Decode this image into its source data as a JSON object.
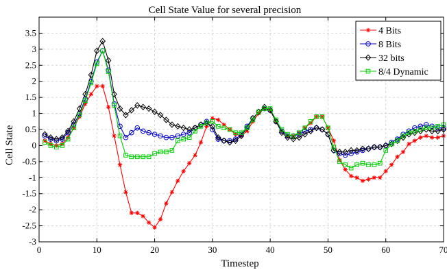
{
  "chart_data": {
    "type": "line",
    "title": "Cell State Value for several precision",
    "xlabel": "Timestep",
    "ylabel": "Cell State",
    "xlim": [
      0,
      70
    ],
    "ylim": [
      -3,
      4
    ],
    "xticks": [
      "0",
      "10",
      "20",
      "30",
      "40",
      "50",
      "60",
      "70"
    ],
    "yticks": [
      "-3",
      "-2.5",
      "-2",
      "-1.5",
      "-1",
      "-0.5",
      "0",
      "0.5",
      "1",
      "1.5",
      "2",
      "2.5",
      "3",
      "3.5"
    ],
    "grid": true,
    "legend_position": "top-right",
    "x": [
      1,
      2,
      3,
      4,
      5,
      6,
      7,
      8,
      9,
      10,
      11,
      12,
      13,
      14,
      15,
      16,
      17,
      18,
      19,
      20,
      21,
      22,
      23,
      24,
      25,
      26,
      27,
      28,
      29,
      30,
      31,
      32,
      33,
      34,
      35,
      36,
      37,
      38,
      39,
      40,
      41,
      42,
      43,
      44,
      45,
      46,
      47,
      48,
      49,
      50,
      51,
      52,
      53,
      54,
      55,
      56,
      57,
      58,
      59,
      60,
      61,
      62,
      63,
      64,
      65,
      66,
      67,
      68,
      69,
      70
    ],
    "series": [
      {
        "name": "4 Bits",
        "color": "#ff0000",
        "marker": "star",
        "values": [
          0.15,
          0.05,
          0.0,
          0.05,
          0.25,
          0.55,
          0.9,
          1.3,
          1.6,
          1.85,
          1.85,
          1.2,
          0.3,
          -0.6,
          -1.45,
          -2.1,
          -2.1,
          -2.2,
          -2.4,
          -2.55,
          -2.3,
          -1.8,
          -1.45,
          -1.1,
          -0.8,
          -0.55,
          -0.3,
          0.1,
          0.6,
          0.85,
          0.8,
          0.65,
          0.5,
          0.35,
          0.3,
          0.45,
          0.75,
          1.0,
          1.15,
          1.1,
          0.75,
          0.45,
          0.3,
          0.3,
          0.4,
          0.55,
          0.7,
          0.9,
          0.9,
          0.55,
          0.15,
          -0.45,
          -0.75,
          -0.95,
          -1.0,
          -1.1,
          -1.05,
          -1.0,
          -1.0,
          -0.8,
          -0.6,
          -0.35,
          -0.2,
          0.05,
          0.15,
          0.25,
          0.3,
          0.25,
          0.25,
          0.3
        ]
      },
      {
        "name": "8 Bits",
        "color": "#0000cc",
        "marker": "circle",
        "values": [
          0.3,
          0.2,
          0.15,
          0.2,
          0.4,
          0.65,
          1.0,
          1.45,
          2.0,
          2.6,
          2.95,
          2.35,
          1.3,
          0.6,
          0.25,
          0.4,
          0.55,
          0.45,
          0.4,
          0.35,
          0.3,
          0.25,
          0.25,
          0.3,
          0.35,
          0.4,
          0.55,
          0.65,
          0.75,
          0.5,
          0.2,
          0.15,
          0.15,
          0.2,
          0.35,
          0.6,
          0.85,
          1.05,
          1.15,
          1.1,
          0.75,
          0.45,
          0.3,
          0.3,
          0.35,
          0.45,
          0.5,
          0.55,
          0.5,
          0.35,
          -0.15,
          -0.25,
          -0.3,
          -0.25,
          -0.2,
          -0.15,
          -0.1,
          -0.05,
          -0.05,
          0.0,
          0.1,
          0.2,
          0.35,
          0.45,
          0.55,
          0.6,
          0.65,
          0.6,
          0.55,
          0.55
        ]
      },
      {
        "name": "32 bits",
        "color": "#000000",
        "marker": "diamond",
        "values": [
          0.35,
          0.25,
          0.2,
          0.25,
          0.45,
          0.75,
          1.15,
          1.6,
          2.2,
          2.95,
          3.25,
          2.65,
          1.6,
          1.15,
          0.95,
          1.1,
          1.25,
          1.2,
          1.15,
          1.05,
          0.95,
          0.8,
          0.65,
          0.6,
          0.55,
          0.5,
          0.55,
          0.65,
          0.7,
          0.6,
          0.25,
          0.15,
          0.1,
          0.15,
          0.3,
          0.55,
          0.85,
          1.05,
          1.2,
          1.1,
          0.75,
          0.4,
          0.25,
          0.2,
          0.25,
          0.35,
          0.45,
          0.55,
          0.5,
          0.35,
          -0.15,
          -0.2,
          -0.2,
          -0.15,
          -0.15,
          -0.1,
          -0.1,
          -0.05,
          -0.05,
          0.0,
          0.05,
          0.15,
          0.25,
          0.35,
          0.4,
          0.45,
          0.5,
          0.45,
          0.45,
          0.5
        ]
      },
      {
        "name": "8/4 Dynamic",
        "color": "#00cc00",
        "marker": "square",
        "values": [
          0.1,
          0.0,
          -0.05,
          0.0,
          0.2,
          0.55,
          0.95,
          1.4,
          1.95,
          2.55,
          2.95,
          2.3,
          1.25,
          0.3,
          -0.3,
          -0.35,
          -0.35,
          -0.35,
          -0.35,
          -0.25,
          -0.2,
          -0.2,
          -0.15,
          0.15,
          0.2,
          0.25,
          0.45,
          0.6,
          0.7,
          0.75,
          0.6,
          0.55,
          0.5,
          0.4,
          0.4,
          0.55,
          0.8,
          1.05,
          1.15,
          1.15,
          0.8,
          0.5,
          0.35,
          0.3,
          0.4,
          0.55,
          0.75,
          0.9,
          0.9,
          0.55,
          -0.05,
          -0.5,
          -0.6,
          -0.7,
          -0.6,
          -0.55,
          -0.6,
          -0.6,
          -0.55,
          -0.15,
          0.05,
          0.15,
          0.3,
          0.4,
          0.45,
          0.5,
          0.55,
          0.55,
          0.6,
          0.65
        ]
      }
    ]
  }
}
